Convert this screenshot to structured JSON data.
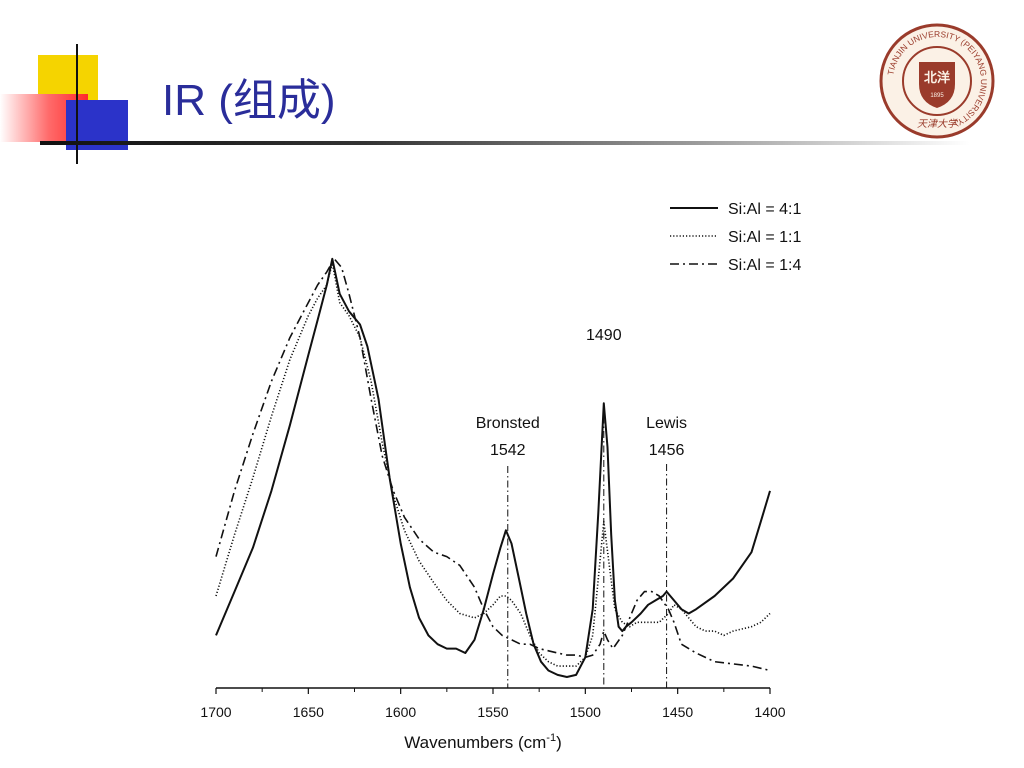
{
  "slide": {
    "title": "IR (组成)"
  },
  "logo": {
    "ring_text": "TIANJIN UNIVERSITY (PEIYANG UNIVERSITY)",
    "center_text": "北洋",
    "year": "1895",
    "bottom_text": "天津大学",
    "color": "#9a3b2b"
  },
  "colors": {
    "title": "#2a2d9a",
    "deco_yellow": "#f5d400",
    "deco_blue": "#2b33c9",
    "deco_red": "#ff2a2a"
  },
  "chart_data": {
    "type": "line",
    "title": "",
    "xlabel": "Wavenumbers (cm",
    "xlabel_sup": "-1",
    "xlabel_end": ")",
    "ylabel": "",
    "xlim": [
      1700,
      1400
    ],
    "ylim": [
      0,
      1.0
    ],
    "reversed_x": true,
    "grid": false,
    "legend_position": "top-right",
    "xticks": [
      1700,
      1650,
      1600,
      1550,
      1500,
      1450,
      1400
    ],
    "xtick_labels": [
      "1700",
      "1650",
      "1600",
      "1550",
      "1500",
      "1450",
      "1400"
    ],
    "series": [
      {
        "name": "Si:Al = 4:1",
        "style": "solid",
        "x": [
          1700,
          1690,
          1680,
          1670,
          1660,
          1650,
          1645,
          1640,
          1637,
          1633,
          1628,
          1622,
          1618,
          1612,
          1606,
          1600,
          1595,
          1590,
          1585,
          1580,
          1575,
          1570,
          1565,
          1560,
          1555,
          1550,
          1546,
          1543,
          1540,
          1536,
          1532,
          1528,
          1524,
          1520,
          1515,
          1510,
          1505,
          1500,
          1496,
          1493,
          1490,
          1488,
          1486,
          1484,
          1482,
          1480,
          1478,
          1475,
          1470,
          1466,
          1462,
          1458,
          1456,
          1452,
          1448,
          1444,
          1440,
          1430,
          1420,
          1410,
          1405,
          1400
        ],
        "y": [
          0.12,
          0.22,
          0.32,
          0.45,
          0.6,
          0.76,
          0.84,
          0.92,
          0.98,
          0.9,
          0.86,
          0.83,
          0.78,
          0.66,
          0.48,
          0.33,
          0.23,
          0.16,
          0.12,
          0.1,
          0.09,
          0.09,
          0.08,
          0.11,
          0.18,
          0.26,
          0.32,
          0.36,
          0.33,
          0.25,
          0.17,
          0.1,
          0.06,
          0.04,
          0.03,
          0.025,
          0.03,
          0.07,
          0.18,
          0.4,
          0.65,
          0.55,
          0.35,
          0.2,
          0.14,
          0.13,
          0.14,
          0.15,
          0.17,
          0.19,
          0.2,
          0.21,
          0.22,
          0.2,
          0.18,
          0.17,
          0.18,
          0.21,
          0.25,
          0.31,
          0.38,
          0.45
        ]
      },
      {
        "name": "Si:Al = 1:1",
        "style": "dotted",
        "x": [
          1700,
          1690,
          1680,
          1670,
          1660,
          1650,
          1645,
          1640,
          1637,
          1633,
          1628,
          1622,
          1616,
          1610,
          1604,
          1598,
          1590,
          1582,
          1575,
          1568,
          1560,
          1555,
          1550,
          1546,
          1543,
          1540,
          1535,
          1530,
          1525,
          1520,
          1515,
          1510,
          1505,
          1500,
          1496,
          1493,
          1490,
          1487,
          1484,
          1480,
          1476,
          1472,
          1468,
          1464,
          1460,
          1455,
          1452,
          1448,
          1444,
          1440,
          1435,
          1430,
          1425,
          1420,
          1410,
          1405,
          1400
        ],
        "y": [
          0.21,
          0.35,
          0.48,
          0.62,
          0.75,
          0.85,
          0.89,
          0.92,
          0.97,
          0.88,
          0.85,
          0.8,
          0.7,
          0.56,
          0.44,
          0.36,
          0.29,
          0.24,
          0.2,
          0.17,
          0.16,
          0.17,
          0.19,
          0.21,
          0.21,
          0.2,
          0.17,
          0.12,
          0.08,
          0.06,
          0.05,
          0.05,
          0.05,
          0.07,
          0.12,
          0.25,
          0.38,
          0.28,
          0.18,
          0.15,
          0.14,
          0.15,
          0.15,
          0.15,
          0.15,
          0.17,
          0.19,
          0.18,
          0.16,
          0.14,
          0.13,
          0.13,
          0.12,
          0.13,
          0.14,
          0.15,
          0.17
        ]
      },
      {
        "name": "Si:Al = 1:4",
        "style": "dash-dot",
        "x": [
          1700,
          1690,
          1680,
          1670,
          1660,
          1650,
          1645,
          1640,
          1636,
          1632,
          1628,
          1622,
          1616,
          1610,
          1604,
          1598,
          1590,
          1582,
          1575,
          1568,
          1560,
          1555,
          1550,
          1545,
          1540,
          1535,
          1530,
          1525,
          1520,
          1515,
          1510,
          1505,
          1500,
          1496,
          1492,
          1490,
          1488,
          1485,
          1480,
          1476,
          1472,
          1468,
          1464,
          1460,
          1455,
          1452,
          1448,
          1444,
          1440,
          1430,
          1420,
          1410,
          1405,
          1400
        ],
        "y": [
          0.3,
          0.45,
          0.58,
          0.7,
          0.8,
          0.88,
          0.92,
          0.95,
          0.98,
          0.96,
          0.9,
          0.8,
          0.66,
          0.53,
          0.45,
          0.39,
          0.34,
          0.31,
          0.3,
          0.28,
          0.23,
          0.18,
          0.14,
          0.12,
          0.11,
          0.1,
          0.1,
          0.09,
          0.085,
          0.08,
          0.075,
          0.075,
          0.07,
          0.075,
          0.1,
          0.13,
          0.11,
          0.09,
          0.12,
          0.16,
          0.2,
          0.22,
          0.22,
          0.21,
          0.18,
          0.15,
          0.1,
          0.09,
          0.08,
          0.06,
          0.055,
          0.05,
          0.045,
          0.04
        ]
      }
    ],
    "annotations": [
      {
        "id": "bronsted",
        "name_label": "Bronsted",
        "value_label": "1542",
        "x": 1542
      },
      {
        "id": "b1490",
        "name_label": "",
        "value_label": "1490",
        "x": 1490
      },
      {
        "id": "lewis",
        "name_label": "Lewis",
        "value_label": "1456",
        "x": 1456
      }
    ]
  }
}
